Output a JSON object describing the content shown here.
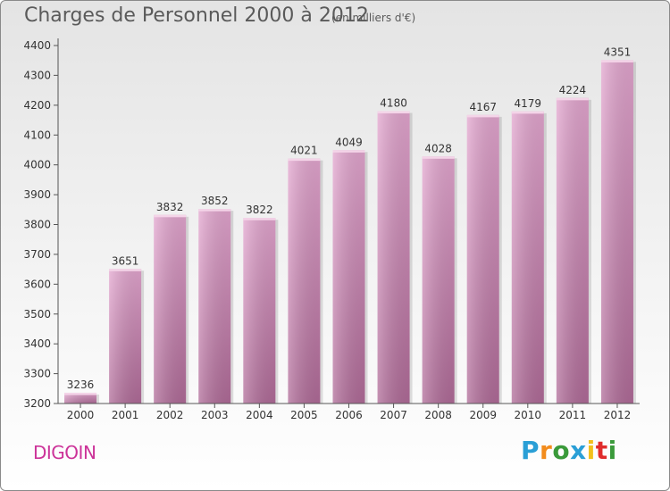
{
  "page": {
    "title": "Charges de Personnel 2000 à 2012",
    "subtitle": "(en milliers d'€)",
    "city": "DIGOIN"
  },
  "logo": {
    "text": "Proxiti",
    "letters": [
      "P",
      "r",
      "o",
      "x",
      "i",
      "t",
      "i"
    ],
    "colors": [
      "#2a9fd6",
      "#f28c1c",
      "#3a9a3a",
      "#2a9fd6",
      "#f2c01c",
      "#e02c2c",
      "#3a9a3a"
    ]
  },
  "colors": {
    "bar_top": "#e3a6cf",
    "bar_bottom": "#b06b98",
    "axis": "#555555",
    "text": "#333333"
  },
  "chart_data": {
    "type": "bar",
    "title": "Charges de Personnel 2000 à 2012",
    "subtitle": "(en milliers d'€)",
    "categories": [
      "2000",
      "2001",
      "2002",
      "2003",
      "2004",
      "2005",
      "2006",
      "2007",
      "2008",
      "2009",
      "2010",
      "2011",
      "2012"
    ],
    "values": [
      3236,
      3651,
      3832,
      3852,
      3822,
      4021,
      4049,
      4180,
      4028,
      4167,
      4179,
      4224,
      4351
    ],
    "ylim": [
      3200,
      4400
    ],
    "yticks": [
      3200,
      3300,
      3400,
      3500,
      3600,
      3700,
      3800,
      3900,
      4000,
      4100,
      4200,
      4300,
      4400
    ],
    "grid": false,
    "data_labels": true
  }
}
